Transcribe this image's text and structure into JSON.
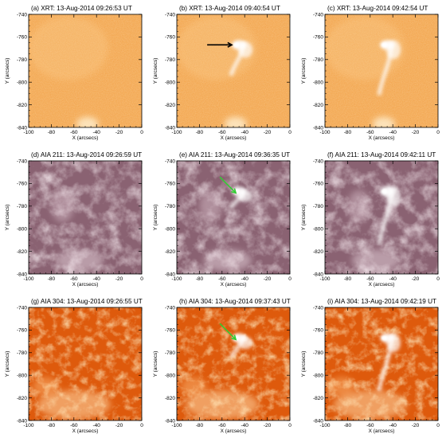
{
  "figure": {
    "panels": [
      {
        "letter": "(a)",
        "title": "(a) XRT: 13-Aug-2014 09:26:53 UT",
        "instrument": "XRT",
        "colormap": "xrt",
        "jet": 0,
        "bright_point": 0,
        "arrow": null
      },
      {
        "letter": "(b)",
        "title": "(b) XRT: 13-Aug-2014 09:40:54 UT",
        "instrument": "XRT",
        "colormap": "xrt",
        "jet": 0.55,
        "bright_point": 1,
        "arrow": {
          "color": "#000000"
        }
      },
      {
        "letter": "(c)",
        "title": "(c) XRT: 13-Aug-2014 09:42:54 UT",
        "instrument": "XRT",
        "colormap": "xrt",
        "jet": 0.9,
        "bright_point": 1,
        "arrow": null
      },
      {
        "letter": "(d)",
        "title": "(d) AIA 211: 13-Aug-2014 09:26:59 UT",
        "instrument": "AIA 211",
        "colormap": "aia211",
        "jet": 0,
        "bright_point": 0,
        "arrow": null
      },
      {
        "letter": "(e)",
        "title": "(e) AIA 211: 13-Aug-2014 09:36:35 UT",
        "instrument": "AIA 211",
        "colormap": "aia211",
        "jet": 0.3,
        "bright_point": 1,
        "arrow": {
          "color": "#33cc33"
        }
      },
      {
        "letter": "(f)",
        "title": "(f) AIA 211: 13-Aug-2014 09:42:11 UT",
        "instrument": "AIA 211",
        "colormap": "aia211",
        "jet": 0.95,
        "bright_point": 1,
        "arrow": null
      },
      {
        "letter": "(g)",
        "title": "(g) AIA 304: 13-Aug-2014 09:26:55 UT",
        "instrument": "AIA 304",
        "colormap": "aia304",
        "jet": 0,
        "bright_point": 0,
        "arrow": null
      },
      {
        "letter": "(h)",
        "title": "(h) AIA 304: 13-Aug-2014 09:37:43 UT",
        "instrument": "AIA 304",
        "colormap": "aia304",
        "jet": 0.35,
        "bright_point": 1,
        "arrow": {
          "color": "#33cc33"
        }
      },
      {
        "letter": "(i)",
        "title": "(i) AIA 304: 13-Aug-2014 09:42:19 UT",
        "instrument": "AIA 304",
        "colormap": "aia304",
        "jet": 0.95,
        "bright_point": 1,
        "arrow": null
      }
    ],
    "axes": {
      "xlabel": "X (arcsecs)",
      "ylabel": "Y (arcsecs)",
      "xlim": [
        -100,
        0
      ],
      "ylim": [
        -840,
        -740
      ],
      "xticks": [
        "-100",
        "-80",
        "-60",
        "-40",
        "-20",
        "0"
      ],
      "yticks": [
        "-740",
        "-760",
        "-780",
        "-800",
        "-820",
        "-840"
      ]
    },
    "colors": {
      "xrt_base": "#f2a146",
      "aia211_base": "#8a6272",
      "aia304_base": "#de5a0c",
      "arrow_black": "#000000",
      "arrow_green": "#33cc33"
    }
  }
}
